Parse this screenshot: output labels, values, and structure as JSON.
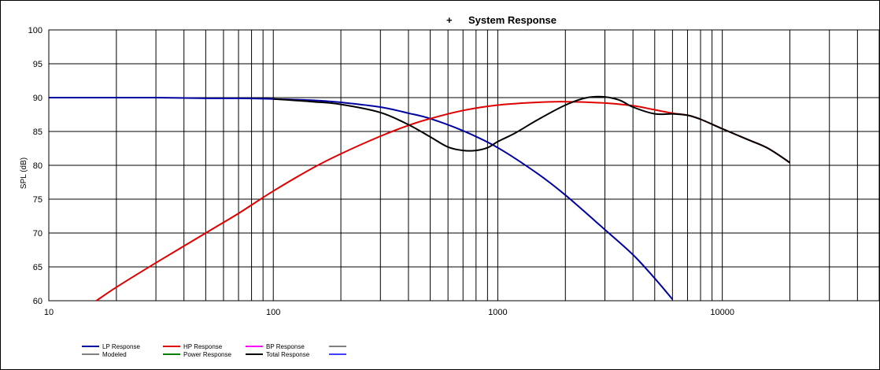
{
  "chart_data": {
    "type": "line",
    "title": "System Response",
    "title_marker": "+",
    "xlabel": "",
    "ylabel": "SPL (dB)",
    "xscale": "log",
    "xlim": [
      10,
      50000
    ],
    "ylim": [
      60,
      100
    ],
    "y_ticks": [
      100,
      95,
      90,
      85,
      80,
      75,
      70,
      65,
      60
    ],
    "x_tick_labels": [
      {
        "value": 10,
        "label": "10"
      },
      {
        "value": 100,
        "label": "100"
      },
      {
        "value": 1000,
        "label": "1000"
      },
      {
        "value": 10000,
        "label": "10000"
      }
    ],
    "grid": true,
    "legend_position": "bottom",
    "series": [
      {
        "name": "LP Response",
        "color": "#0000a0",
        "points": [
          [
            10,
            90.0
          ],
          [
            20,
            90.0
          ],
          [
            30,
            90.0
          ],
          [
            50,
            89.9
          ],
          [
            70,
            89.9
          ],
          [
            100,
            89.8
          ],
          [
            150,
            89.6
          ],
          [
            200,
            89.3
          ],
          [
            300,
            88.6
          ],
          [
            400,
            87.7
          ],
          [
            500,
            86.9
          ],
          [
            700,
            85.1
          ],
          [
            1000,
            82.6
          ],
          [
            1500,
            78.8
          ],
          [
            2000,
            75.6
          ],
          [
            3000,
            70.5
          ],
          [
            4000,
            66.8
          ],
          [
            5000,
            63.3
          ],
          [
            6000,
            60.2
          ]
        ]
      },
      {
        "name": "HP Response",
        "color": "#e00000",
        "points": [
          [
            16.3,
            60.0
          ],
          [
            20,
            62.0
          ],
          [
            30,
            65.6
          ],
          [
            50,
            70.0
          ],
          [
            70,
            72.9
          ],
          [
            100,
            76.2
          ],
          [
            150,
            79.6
          ],
          [
            200,
            81.7
          ],
          [
            300,
            84.3
          ],
          [
            400,
            85.9
          ],
          [
            500,
            86.9
          ],
          [
            700,
            88.1
          ],
          [
            1000,
            88.9
          ],
          [
            1500,
            89.3
          ],
          [
            2000,
            89.4
          ],
          [
            3000,
            89.2
          ],
          [
            4000,
            88.8
          ],
          [
            5000,
            88.2
          ],
          [
            6000,
            87.7
          ],
          [
            7000,
            87.4
          ],
          [
            8000,
            86.8
          ],
          [
            10000,
            85.4
          ],
          [
            13000,
            83.8
          ],
          [
            16000,
            82.5
          ],
          [
            20000,
            80.4
          ]
        ]
      },
      {
        "name": "Total Response",
        "color": "#000000",
        "points": [
          [
            100,
            89.8
          ],
          [
            150,
            89.4
          ],
          [
            200,
            89.0
          ],
          [
            300,
            87.8
          ],
          [
            400,
            86.0
          ],
          [
            500,
            84.2
          ],
          [
            600,
            82.7
          ],
          [
            700,
            82.2
          ],
          [
            800,
            82.2
          ],
          [
            900,
            82.6
          ],
          [
            1000,
            83.5
          ],
          [
            1200,
            84.8
          ],
          [
            1500,
            86.7
          ],
          [
            2000,
            88.9
          ],
          [
            2500,
            90.0
          ],
          [
            3000,
            90.1
          ],
          [
            3500,
            89.6
          ],
          [
            4000,
            88.6
          ],
          [
            5000,
            87.6
          ],
          [
            6000,
            87.6
          ],
          [
            7000,
            87.4
          ],
          [
            8000,
            86.8
          ],
          [
            10000,
            85.4
          ],
          [
            13000,
            83.8
          ],
          [
            16000,
            82.5
          ],
          [
            20000,
            80.4
          ]
        ]
      }
    ],
    "legend": [
      {
        "name": "LP Response",
        "color": "#0000a0",
        "row": 0,
        "col": 0
      },
      {
        "name": "HP Response",
        "color": "#e00000",
        "row": 0,
        "col": 1
      },
      {
        "name": "BP Response",
        "color": "#ff00ff",
        "row": 0,
        "col": 2
      },
      {
        "name": "",
        "color": "#808080",
        "row": 0,
        "col": 3
      },
      {
        "name": "Modeled",
        "color": "#808080",
        "row": 1,
        "col": 0
      },
      {
        "name": "Power Response",
        "color": "#008000",
        "row": 1,
        "col": 1
      },
      {
        "name": "Total Response",
        "color": "#000000",
        "row": 1,
        "col": 2
      },
      {
        "name": "",
        "color": "#4040ff",
        "row": 1,
        "col": 3
      }
    ]
  }
}
